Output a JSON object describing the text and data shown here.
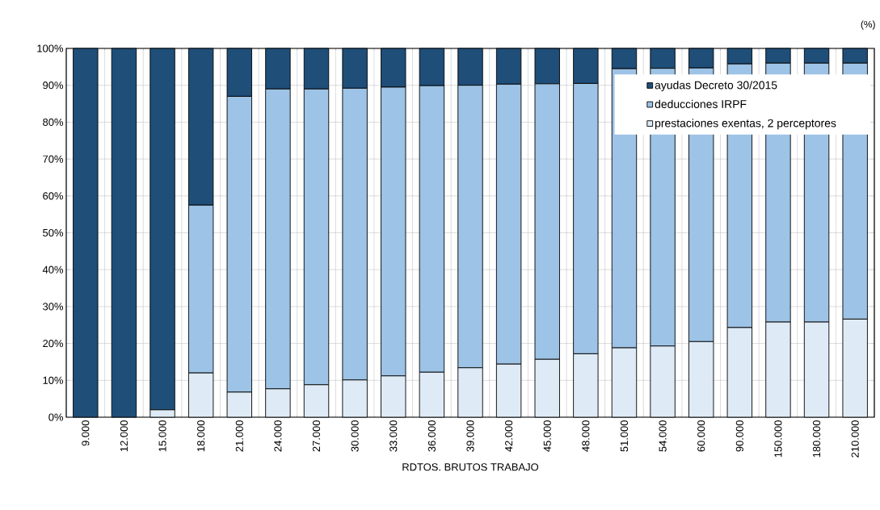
{
  "chart_data": {
    "type": "bar",
    "stacked": true,
    "xlabel": "RDTOS. BRUTOS TRABAJO",
    "annotations": [
      "(%)"
    ],
    "categories": [
      "9.000",
      "12.000",
      "15.000",
      "18.000",
      "21.000",
      "24.000",
      "27.000",
      "30.000",
      "33.000",
      "36.000",
      "39.000",
      "42.000",
      "45.000",
      "48.000",
      "51.000",
      "54.000",
      "60.000",
      "90.000",
      "150.000",
      "180.000",
      "210.000"
    ],
    "series": [
      {
        "name": "prestaciones exentas, 2 perceptores",
        "color": "#deebf7",
        "values": [
          0,
          0,
          2,
          12,
          6.8,
          7.7,
          8.8,
          10.1,
          11.2,
          12.2,
          13.4,
          14.4,
          15.7,
          17.2,
          18.8,
          19.3,
          20.5,
          24.3,
          25.8,
          25.8,
          26.6
        ]
      },
      {
        "name": "deducciones IRPF",
        "color": "#9dc3e6",
        "values": [
          0,
          0,
          0,
          45.5,
          80.2,
          81.3,
          80.2,
          79.1,
          78.3,
          77.7,
          76.6,
          75.9,
          74.7,
          73.3,
          75.7,
          75.3,
          74.2,
          71.5,
          70.2,
          70.2,
          69.4
        ]
      },
      {
        "name": "ayudas Decreto 30/2015",
        "color": "#1f4e79",
        "values": [
          100,
          100,
          98,
          42.5,
          13,
          11,
          11,
          10.8,
          10.5,
          10.1,
          10,
          9.7,
          9.6,
          9.5,
          5.5,
          5.4,
          5.3,
          4.2,
          4,
          4,
          4
        ]
      }
    ],
    "ylim": [
      0,
      100
    ],
    "yticks": [
      {
        "value": 0,
        "label": "0%"
      },
      {
        "value": 10,
        "label": "10%"
      },
      {
        "value": 20,
        "label": "20%"
      },
      {
        "value": 30,
        "label": "30%"
      },
      {
        "value": 40,
        "label": "40%"
      },
      {
        "value": 50,
        "label": "50%"
      },
      {
        "value": 60,
        "label": "60%"
      },
      {
        "value": 70,
        "label": "70%"
      },
      {
        "value": 80,
        "label": "80%"
      },
      {
        "value": 90,
        "label": "90%"
      },
      {
        "value": 100,
        "label": "100%"
      }
    ],
    "grid": true,
    "legend": "top right"
  }
}
